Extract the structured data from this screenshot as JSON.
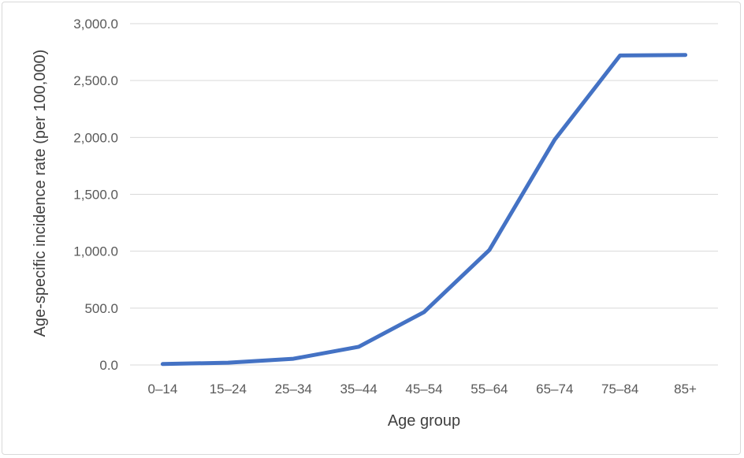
{
  "chart_data": {
    "type": "line",
    "categories": [
      "0–14",
      "15–24",
      "25–34",
      "35–44",
      "45–54",
      "55–64",
      "65–74",
      "75–84",
      "85+"
    ],
    "series": [
      {
        "values": [
          8,
          20,
          55,
          160,
          465,
          1010,
          1980,
          2720,
          2725
        ],
        "color": "#4472C4"
      }
    ],
    "xlabel": "Age group",
    "ylabel": "Age-specific incidence rate (per 100,000)",
    "ylim": [
      0,
      3000
    ],
    "yticks": [
      "0.0",
      "500.0",
      "1,000.0",
      "1,500.0",
      "2,000.0",
      "2,500.0",
      "3,000.0"
    ],
    "grid": true,
    "gridColor": "#d9d9d9"
  }
}
